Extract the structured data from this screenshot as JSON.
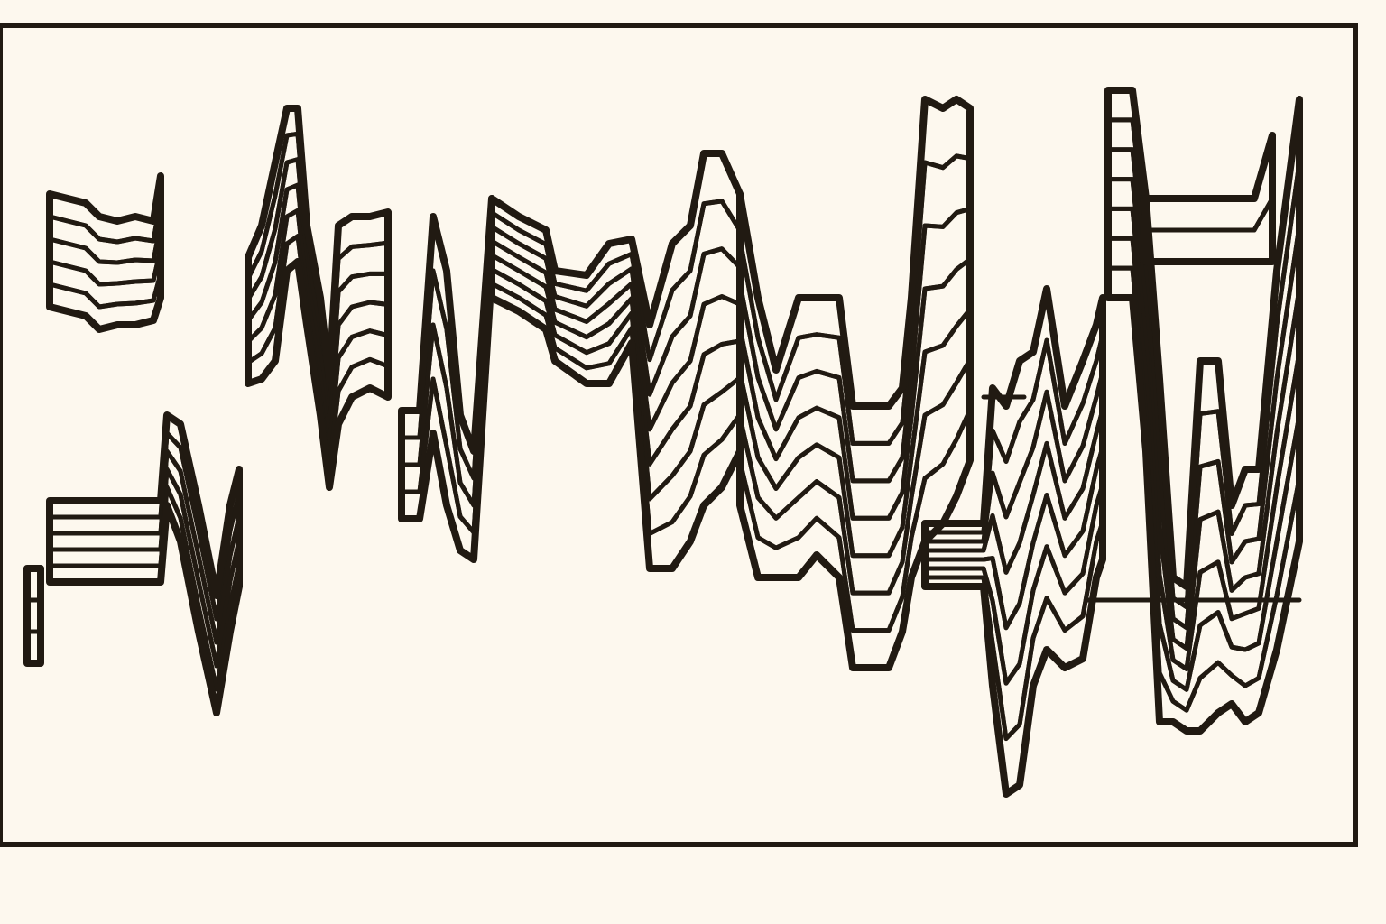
{
  "artwork": {
    "style": "stacked streamgraph-like abstract bands with thick dark outlines",
    "background_color": "#fdf8ee",
    "outline_color": "#211a12",
    "palette": [
      "#c0392b",
      "#e85d5d",
      "#3a6fb5",
      "#2eb3b8",
      "#e9c32a",
      "#9bbf25",
      "#2a9446",
      "#7b2d8e",
      "#f08a3c",
      "#f4a3a8",
      "#fbe39a",
      "#5bc0e0"
    ]
  }
}
